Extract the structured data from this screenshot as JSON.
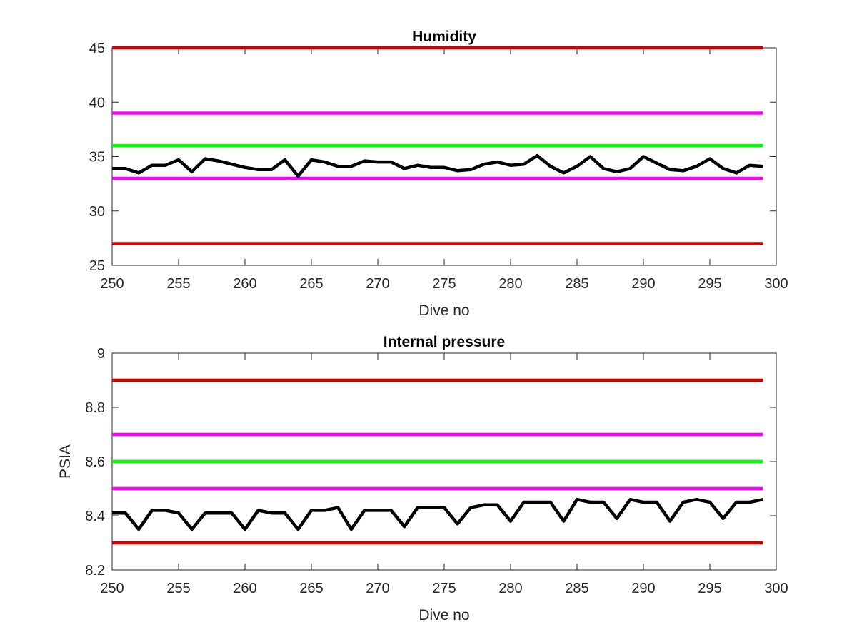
{
  "chart_data": [
    {
      "type": "line",
      "title": "Humidity",
      "xlabel": "Dive no",
      "ylabel": "",
      "xlim": [
        250,
        300
      ],
      "ylim": [
        25,
        45
      ],
      "xticks": [
        250,
        255,
        260,
        265,
        270,
        275,
        280,
        285,
        290,
        295,
        300
      ],
      "yticks": [
        25,
        30,
        35,
        40,
        45
      ],
      "grid": false,
      "legend": "none",
      "reference_lines": [
        {
          "y": 45,
          "color": "#d40000"
        },
        {
          "y": 39,
          "color": "#ff00ff"
        },
        {
          "y": 36,
          "color": "#00ff00"
        },
        {
          "y": 33,
          "color": "#ff00ff"
        },
        {
          "y": 27,
          "color": "#d40000"
        }
      ],
      "series": [
        {
          "color": "#000000",
          "x": [
            250,
            251,
            252,
            253,
            254,
            255,
            256,
            257,
            258,
            259,
            260,
            261,
            262,
            263,
            264,
            265,
            266,
            267,
            268,
            269,
            270,
            271,
            272,
            273,
            274,
            275,
            276,
            277,
            278,
            279,
            280,
            281,
            282,
            283,
            284,
            285,
            286,
            287,
            288,
            289,
            290,
            291,
            292,
            293,
            294,
            295,
            296,
            297,
            298,
            299
          ],
          "values": [
            33.9,
            33.9,
            33.5,
            34.2,
            34.2,
            34.7,
            33.6,
            34.8,
            34.6,
            34.3,
            34.0,
            33.8,
            33.8,
            34.7,
            33.2,
            34.7,
            34.5,
            34.1,
            34.1,
            34.6,
            34.5,
            34.5,
            33.9,
            34.2,
            34.0,
            34.0,
            33.7,
            33.8,
            34.3,
            34.5,
            34.2,
            34.3,
            35.1,
            34.1,
            33.5,
            34.1,
            35.0,
            33.9,
            33.6,
            33.9,
            35.0,
            34.4,
            33.8,
            33.7,
            34.1,
            34.8,
            33.9,
            33.5,
            34.2,
            34.1
          ]
        }
      ]
    },
    {
      "type": "line",
      "title": "Internal pressure",
      "xlabel": "Dive no",
      "ylabel": "PSIA",
      "xlim": [
        250,
        300
      ],
      "ylim": [
        8.2,
        9
      ],
      "xticks": [
        250,
        255,
        260,
        265,
        270,
        275,
        280,
        285,
        290,
        295,
        300
      ],
      "yticks": [
        "8.2",
        "8.4",
        "8.6",
        "8.8",
        "9"
      ],
      "grid": false,
      "legend": "none",
      "reference_lines": [
        {
          "y": 8.9,
          "color": "#d40000"
        },
        {
          "y": 8.7,
          "color": "#ff00ff"
        },
        {
          "y": 8.6,
          "color": "#00ff00"
        },
        {
          "y": 8.5,
          "color": "#ff00ff"
        },
        {
          "y": 8.3,
          "color": "#d40000"
        }
      ],
      "series": [
        {
          "color": "#000000",
          "x": [
            250,
            251,
            252,
            253,
            254,
            255,
            256,
            257,
            258,
            259,
            260,
            261,
            262,
            263,
            264,
            265,
            266,
            267,
            268,
            269,
            270,
            271,
            272,
            273,
            274,
            275,
            276,
            277,
            278,
            279,
            280,
            281,
            282,
            283,
            284,
            285,
            286,
            287,
            288,
            289,
            290,
            291,
            292,
            293,
            294,
            295,
            296,
            297,
            298,
            299
          ],
          "values": [
            8.41,
            8.41,
            8.35,
            8.42,
            8.42,
            8.41,
            8.35,
            8.41,
            8.41,
            8.41,
            8.35,
            8.42,
            8.41,
            8.41,
            8.35,
            8.42,
            8.42,
            8.43,
            8.35,
            8.42,
            8.42,
            8.42,
            8.36,
            8.43,
            8.43,
            8.43,
            8.37,
            8.43,
            8.44,
            8.44,
            8.38,
            8.45,
            8.45,
            8.45,
            8.38,
            8.46,
            8.45,
            8.45,
            8.39,
            8.46,
            8.45,
            8.45,
            8.38,
            8.45,
            8.46,
            8.45,
            8.39,
            8.45,
            8.45,
            8.46
          ]
        }
      ]
    }
  ]
}
